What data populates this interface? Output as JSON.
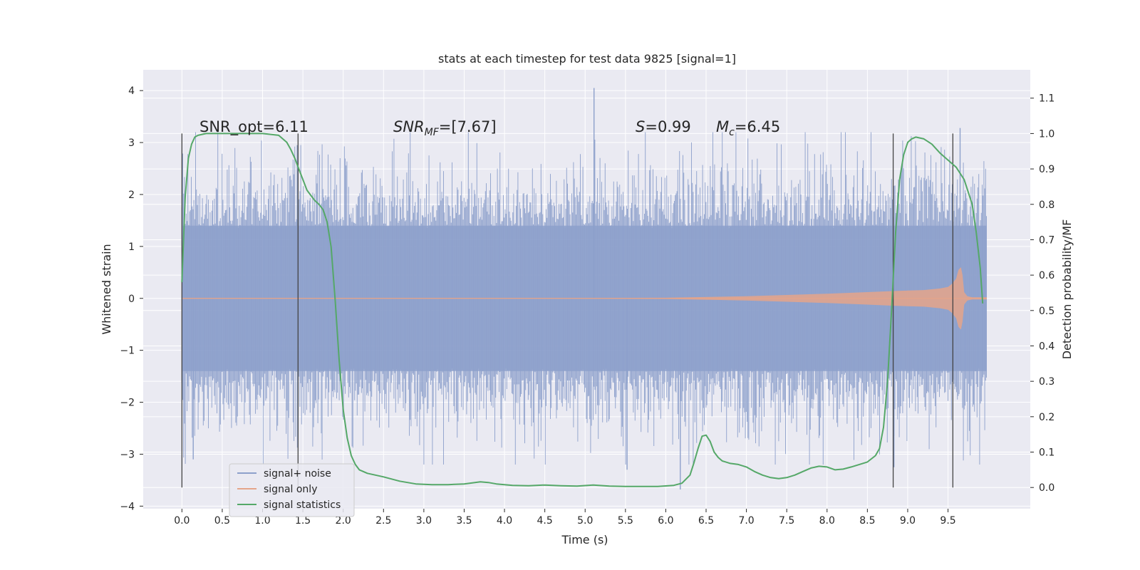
{
  "chart_data": {
    "type": "line",
    "title": "stats at each timestep for test data 9825 [signal=1]",
    "xlabel": "Time (s)",
    "ylabel_left": "Whitened strain",
    "ylabel_right": "Detection probability/MF",
    "xlim": [
      -0.48,
      10.52
    ],
    "ylim_left": [
      -4.05,
      4.4
    ],
    "ylim_right": [
      -0.06,
      1.18
    ],
    "x_ticks": [
      "0.0",
      "0.5",
      "1.0",
      "1.5",
      "2.0",
      "2.5",
      "3.0",
      "3.5",
      "4.0",
      "4.5",
      "5.0",
      "5.5",
      "6.0",
      "6.5",
      "7.0",
      "7.5",
      "8.0",
      "8.5",
      "9.0",
      "9.5"
    ],
    "x_tick_values": [
      0,
      0.5,
      1,
      1.5,
      2,
      2.5,
      3,
      3.5,
      4,
      4.5,
      5,
      5.5,
      6,
      6.5,
      7,
      7.5,
      8,
      8.5,
      9,
      9.5
    ],
    "y_left_ticks": [
      "4",
      "3",
      "2",
      "1",
      "0",
      "−1",
      "−2",
      "−3",
      "−4"
    ],
    "y_left_tick_values": [
      4,
      3,
      2,
      1,
      0,
      -1,
      -2,
      -3,
      -4
    ],
    "y_right_ticks": [
      "1.1",
      "1.0",
      "0.9",
      "0.8",
      "0.7",
      "0.6",
      "0.5",
      "0.4",
      "0.3",
      "0.2",
      "0.1",
      "0.0"
    ],
    "y_right_tick_values": [
      1.1,
      1.0,
      0.9,
      0.8,
      0.7,
      0.6,
      0.5,
      0.4,
      0.3,
      0.2,
      0.1,
      0.0
    ],
    "grid": true,
    "legend_placement": "lower-left",
    "annotations": {
      "snr_opt": "SNR_opt=6.11",
      "snr_mf_base": "SNR",
      "snr_mf_sub": "MF",
      "snr_mf_rest": "=[7.67]",
      "s_label": "S",
      "s_value": "=0.99",
      "mc_label": "M",
      "mc_sub": "c",
      "mc_value": "=6.45"
    },
    "vertical_markers": [
      0.0,
      1.44,
      8.82,
      9.56
    ],
    "series": [
      {
        "name": "signal+ noise",
        "axis": "left",
        "color": "#8da0cb",
        "x_range": [
          0.0,
          9.98
        ],
        "typical_envelope": [
          -1.4,
          1.4
        ],
        "peak_range": [
          -3.7,
          4.05
        ],
        "notable_peaks": [
          {
            "x": 5.11,
            "y": 4.05
          },
          {
            "x": 6.18,
            "y": -3.68
          },
          {
            "x": 1.43,
            "y": 2.95
          },
          {
            "x": 9.65,
            "y": 3.28
          },
          {
            "x": 8.83,
            "y": -3.25
          },
          {
            "x": 0.14,
            "y": -3.1
          },
          {
            "x": 5.52,
            "y": -3.3
          }
        ]
      },
      {
        "name": "signal only",
        "axis": "left",
        "color": "#e5a58a",
        "x": [
          0,
          5.0,
          6.0,
          7.0,
          7.5,
          8.0,
          8.5,
          8.8,
          9.0,
          9.2,
          9.4,
          9.5,
          9.55,
          9.6,
          9.63,
          9.66,
          9.68,
          9.7,
          9.74,
          9.8,
          9.98
        ],
        "amplitude": [
          0.006,
          0.006,
          0.012,
          0.04,
          0.065,
          0.09,
          0.12,
          0.14,
          0.15,
          0.16,
          0.19,
          0.22,
          0.28,
          0.38,
          0.55,
          0.6,
          0.45,
          0.12,
          0.04,
          0.02,
          0.02
        ]
      },
      {
        "name": "signal statistics",
        "axis": "right",
        "color": "#55a868",
        "x": [
          0,
          0.04,
          0.08,
          0.12,
          0.16,
          0.2,
          0.3,
          0.5,
          0.8,
          1.0,
          1.2,
          1.3,
          1.35,
          1.4,
          1.45,
          1.5,
          1.55,
          1.6,
          1.65,
          1.7,
          1.75,
          1.8,
          1.85,
          1.9,
          1.95,
          2.0,
          2.05,
          2.1,
          2.15,
          2.2,
          2.3,
          2.4,
          2.5,
          2.7,
          2.9,
          3.1,
          3.3,
          3.5,
          3.7,
          3.8,
          3.9,
          4.1,
          4.3,
          4.5,
          4.7,
          4.9,
          5.1,
          5.3,
          5.5,
          5.7,
          5.9,
          6.1,
          6.2,
          6.3,
          6.35,
          6.4,
          6.45,
          6.5,
          6.55,
          6.6,
          6.65,
          6.7,
          6.8,
          6.9,
          7.0,
          7.1,
          7.2,
          7.3,
          7.4,
          7.5,
          7.6,
          7.7,
          7.8,
          7.9,
          8.0,
          8.1,
          8.2,
          8.3,
          8.4,
          8.5,
          8.6,
          8.65,
          8.7,
          8.75,
          8.8,
          8.85,
          8.9,
          8.95,
          9.0,
          9.05,
          9.1,
          9.2,
          9.3,
          9.4,
          9.5,
          9.6,
          9.7,
          9.8,
          9.85,
          9.9,
          9.93
        ],
        "y": [
          0.58,
          0.82,
          0.93,
          0.97,
          0.99,
          0.995,
          1.0,
          1.0,
          1.0,
          1.0,
          0.995,
          0.975,
          0.955,
          0.93,
          0.9,
          0.87,
          0.84,
          0.825,
          0.81,
          0.8,
          0.785,
          0.75,
          0.68,
          0.53,
          0.36,
          0.22,
          0.14,
          0.09,
          0.065,
          0.05,
          0.04,
          0.035,
          0.03,
          0.018,
          0.01,
          0.008,
          0.008,
          0.01,
          0.016,
          0.014,
          0.01,
          0.006,
          0.005,
          0.007,
          0.005,
          0.004,
          0.007,
          0.004,
          0.003,
          0.003,
          0.003,
          0.006,
          0.012,
          0.035,
          0.07,
          0.11,
          0.145,
          0.148,
          0.13,
          0.1,
          0.085,
          0.075,
          0.068,
          0.065,
          0.058,
          0.045,
          0.035,
          0.028,
          0.025,
          0.028,
          0.035,
          0.045,
          0.055,
          0.06,
          0.058,
          0.05,
          0.052,
          0.058,
          0.065,
          0.072,
          0.09,
          0.11,
          0.17,
          0.3,
          0.5,
          0.72,
          0.87,
          0.94,
          0.975,
          0.985,
          0.99,
          0.985,
          0.97,
          0.945,
          0.925,
          0.905,
          0.87,
          0.8,
          0.72,
          0.62,
          0.52
        ]
      }
    ]
  }
}
